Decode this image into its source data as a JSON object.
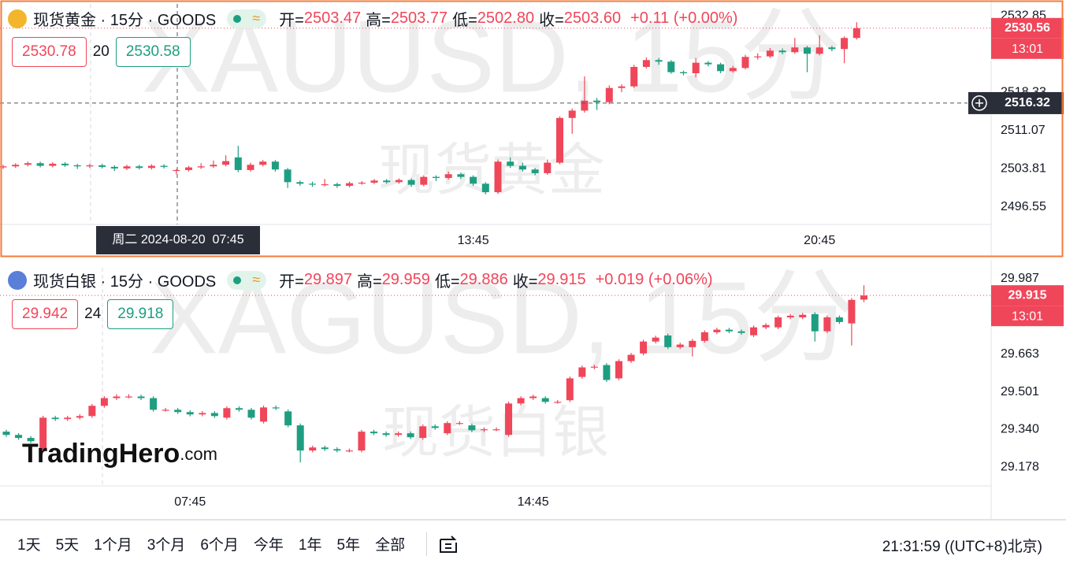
{
  "chart_data": [
    {
      "type": "candlestick",
      "title": "现货黄金 · 15分 · GOODS",
      "status_icon": "≈",
      "header": [
        [
          "开=",
          "2503.47"
        ],
        [
          "高=",
          "2503.77"
        ],
        [
          "低=",
          "2502.80"
        ],
        [
          "收=",
          "2503.60"
        ]
      ],
      "change": "+0.11 (+0.00%)",
      "bid": 2530.78,
      "spread": 20,
      "ask": 2530.58,
      "watermark": "XAUUSD, 15分",
      "watermark_name": "现货黄金",
      "last_price": 2530.56,
      "countdown": "13:01",
      "crosshair_price": 2516.32,
      "crosshair_time": "周二 2024-08-20  07:45",
      "up_color": "#f0465a",
      "down_color": "#1e9e80",
      "ylim": [
        2493.26,
        2535.17
      ],
      "yticks": [
        2496.55,
        2503.81,
        2511.07,
        2518.33,
        2532.85
      ],
      "categories": [
        null,
        null,
        null,
        null,
        null,
        null,
        null,
        null,
        null,
        null,
        null,
        null,
        null,
        null,
        null,
        null,
        null,
        null,
        null,
        null,
        null,
        null,
        null,
        null,
        null,
        null,
        null,
        null,
        null,
        null,
        null,
        null,
        null,
        null,
        null,
        null,
        null,
        null,
        "13:45",
        null,
        null,
        null,
        null,
        null,
        null,
        null,
        null,
        null,
        null,
        null,
        null,
        null,
        null,
        null,
        null,
        null,
        null,
        null,
        null,
        null,
        null,
        null,
        null,
        null,
        null,
        null,
        "20:45",
        null,
        null,
        null
      ],
      "open": [
        2504.1,
        2504.3,
        2504.6,
        2504.9,
        2504.4,
        2504.8,
        2504.5,
        2504.3,
        2504.5,
        2504.2,
        2503.9,
        2504.3,
        2504.0,
        2504.4,
        2503.47,
        2503.6,
        2504.1,
        2504.3,
        2504.6,
        2506.0,
        2503.6,
        2504.6,
        2505.2,
        2503.7,
        2501.3,
        2501.0,
        2500.9,
        2500.9,
        2500.6,
        2501.1,
        2501.2,
        2501.6,
        2501.3,
        2501.7,
        2500.8,
        2502.3,
        2502.1,
        2502.8,
        2502.3,
        2501.0,
        2499.4,
        2505.2,
        2504.4,
        2503.7,
        2503.0,
        2505.0,
        2513.5,
        2514.9,
        2516.8,
        2516.5,
        2519.2,
        2519.5,
        2523.2,
        2524.5,
        2524.2,
        2522.2,
        2522.0,
        2524.0,
        2523.7,
        2522.4,
        2523.0,
        2525.1,
        2525.2,
        2526.3,
        2526.0,
        2526.9,
        2525.7,
        2526.9,
        2526.6,
        2528.7
      ],
      "high": [
        2504.6,
        2504.9,
        2505.2,
        2505.2,
        2505.1,
        2505.1,
        2504.8,
        2504.8,
        2504.8,
        2504.5,
        2504.6,
        2504.6,
        2504.7,
        2504.7,
        2503.77,
        2504.4,
        2504.9,
        2505.4,
        2506.4,
        2508.2,
        2505.0,
        2505.5,
        2505.5,
        2504.0,
        2501.6,
        2501.4,
        2501.9,
        2501.2,
        2501.4,
        2501.5,
        2501.9,
        2501.9,
        2502.0,
        2502.0,
        2502.6,
        2502.6,
        2503.3,
        2503.1,
        2502.6,
        2501.3,
        2505.6,
        2506.0,
        2505.0,
        2504.0,
        2505.6,
        2513.8,
        2515.3,
        2521.4,
        2517.3,
        2519.7,
        2519.9,
        2523.6,
        2525.0,
        2524.9,
        2524.5,
        2522.5,
        2524.9,
        2524.3,
        2524.0,
        2523.4,
        2525.5,
        2525.8,
        2526.8,
        2526.7,
        2528.7,
        2527.2,
        2529.2,
        2527.2,
        2529.0,
        2531.7
      ],
      "low": [
        2503.8,
        2504.0,
        2504.3,
        2504.1,
        2504.1,
        2504.2,
        2503.8,
        2504.0,
        2503.9,
        2503.4,
        2503.6,
        2503.7,
        2503.7,
        2503.9,
        2502.8,
        2503.3,
        2503.8,
        2504.0,
        2504.3,
        2503.2,
        2503.3,
        2504.3,
        2503.3,
        2500.2,
        2500.6,
        2500.4,
        2500.5,
        2500.2,
        2500.3,
        2500.8,
        2500.9,
        2501.0,
        2501.0,
        2500.4,
        2500.5,
        2501.5,
        2501.8,
        2501.9,
        2500.6,
        2499.0,
        2499.1,
        2504.0,
        2503.3,
        2502.6,
        2502.7,
        2504.7,
        2510.5,
        2514.5,
        2515.0,
        2516.1,
        2518.4,
        2519.2,
        2522.9,
        2523.6,
        2521.9,
        2521.6,
        2521.2,
        2523.3,
        2522.0,
        2522.1,
        2522.7,
        2524.6,
        2524.9,
        2525.6,
        2525.7,
        2522.2,
        2525.4,
        2526.2,
        2523.9,
        2528.4
      ],
      "close": [
        2504.3,
        2504.6,
        2504.9,
        2504.4,
        2504.8,
        2504.5,
        2504.3,
        2504.5,
        2504.2,
        2503.9,
        2504.3,
        2504.0,
        2504.4,
        2504.2,
        2503.6,
        2504.1,
        2504.3,
        2504.6,
        2505.3,
        2503.6,
        2504.6,
        2505.2,
        2503.7,
        2501.3,
        2501.0,
        2500.9,
        2500.9,
        2500.6,
        2501.1,
        2501.2,
        2501.6,
        2501.3,
        2501.7,
        2500.8,
        2502.3,
        2502.1,
        2502.8,
        2502.3,
        2501.0,
        2499.4,
        2505.2,
        2504.4,
        2503.7,
        2503.0,
        2505.0,
        2513.5,
        2514.9,
        2516.8,
        2516.5,
        2519.2,
        2519.5,
        2523.2,
        2524.5,
        2524.2,
        2522.2,
        2522.0,
        2524.0,
        2523.7,
        2522.4,
        2523.0,
        2525.1,
        2525.2,
        2526.3,
        2526.0,
        2526.9,
        2525.7,
        2526.9,
        2526.6,
        2528.7,
        2530.56
      ]
    },
    {
      "type": "candlestick",
      "title": "现货白银 · 15分 · GOODS",
      "status_icon": "≈",
      "header": [
        [
          "开=",
          "29.897"
        ],
        [
          "高=",
          "29.959"
        ],
        [
          "低=",
          "29.886"
        ],
        [
          "收=",
          "29.915"
        ]
      ],
      "change": "+0.019 (+0.06%)",
      "bid": 29.942,
      "spread": 24,
      "ask": 29.918,
      "watermark": "XAGUSD, 15分",
      "watermark_name": "现货白银",
      "last_price": 29.915,
      "countdown": "13:01",
      "logo_main": "TradingHero",
      "logo_domain": ".com",
      "up_color": "#f0465a",
      "down_color": "#1e9e80",
      "ylim": [
        29.097,
        30.034
      ],
      "yticks": [
        29.178,
        {
          "value": 29.34,
          "label": "29.340"
        },
        29.501,
        29.663,
        29.987
      ],
      "categories": [
        null,
        null,
        null,
        null,
        null,
        null,
        null,
        null,
        null,
        null,
        null,
        null,
        null,
        null,
        null,
        "07:45",
        null,
        null,
        null,
        null,
        null,
        null,
        null,
        null,
        null,
        null,
        null,
        null,
        null,
        null,
        null,
        null,
        null,
        null,
        null,
        null,
        null,
        null,
        null,
        null,
        null,
        null,
        null,
        "14:45",
        null,
        null,
        null,
        null,
        null,
        null,
        null,
        null,
        null,
        null,
        null,
        null,
        null,
        null,
        null,
        null,
        null,
        null,
        null,
        null,
        null,
        null,
        null,
        null,
        null,
        null,
        null
      ],
      "open": [
        29.33,
        29.316,
        29.303,
        29.255,
        29.39,
        29.384,
        29.39,
        29.397,
        29.441,
        29.474,
        29.481,
        29.481,
        29.474,
        29.424,
        29.424,
        29.414,
        29.404,
        29.41,
        29.39,
        29.431,
        29.424,
        29.373,
        29.434,
        29.417,
        29.357,
        29.249,
        29.262,
        29.255,
        29.249,
        29.249,
        29.33,
        29.323,
        29.316,
        29.323,
        29.303,
        29.353,
        29.323,
        29.367,
        29.357,
        29.336,
        29.34,
        29.316,
        29.451,
        29.474,
        29.474,
        29.458,
        29.465,
        29.565,
        29.606,
        29.616,
        29.559,
        29.633,
        29.666,
        29.717,
        29.743,
        29.693,
        29.693,
        29.72,
        29.757,
        29.768,
        29.761,
        29.744,
        29.778,
        29.778,
        29.821,
        29.821,
        29.835,
        29.761,
        29.821,
        29.795,
        29.897
      ],
      "high": [
        29.338,
        29.324,
        29.311,
        29.398,
        29.398,
        29.398,
        29.405,
        29.449,
        29.482,
        29.491,
        29.491,
        29.489,
        29.482,
        29.432,
        29.432,
        29.422,
        29.418,
        29.418,
        29.439,
        29.439,
        29.432,
        29.442,
        29.442,
        29.425,
        29.365,
        29.27,
        29.27,
        29.263,
        29.257,
        29.338,
        29.338,
        29.331,
        29.331,
        29.331,
        29.361,
        29.361,
        29.375,
        29.375,
        29.365,
        29.348,
        29.348,
        29.459,
        29.482,
        29.489,
        29.482,
        29.466,
        29.567,
        29.614,
        29.617,
        29.624,
        29.641,
        29.668,
        29.725,
        29.742,
        29.751,
        29.712,
        29.728,
        29.765,
        29.776,
        29.776,
        29.769,
        29.786,
        29.796,
        29.829,
        29.836,
        29.84,
        29.843,
        29.829,
        29.829,
        29.904,
        29.959
      ],
      "low": [
        29.308,
        29.295,
        29.281,
        29.247,
        29.376,
        29.376,
        29.382,
        29.389,
        29.433,
        29.466,
        29.473,
        29.466,
        29.416,
        29.416,
        29.406,
        29.396,
        29.396,
        29.389,
        29.382,
        29.416,
        29.382,
        29.365,
        29.423,
        29.349,
        29.198,
        29.241,
        29.247,
        29.241,
        29.241,
        29.241,
        29.315,
        29.308,
        29.308,
        29.298,
        29.295,
        29.338,
        29.315,
        29.359,
        29.328,
        29.328,
        29.332,
        29.308,
        29.443,
        29.466,
        29.45,
        29.45,
        29.457,
        29.557,
        29.598,
        29.544,
        29.551,
        29.625,
        29.658,
        29.709,
        29.685,
        29.685,
        29.653,
        29.712,
        29.749,
        29.753,
        29.746,
        29.736,
        29.77,
        29.77,
        29.813,
        29.813,
        29.717,
        29.753,
        29.793,
        29.7,
        29.886
      ],
      "close": [
        29.316,
        29.303,
        29.289,
        29.39,
        29.384,
        29.39,
        29.397,
        29.441,
        29.474,
        29.481,
        29.481,
        29.474,
        29.424,
        29.424,
        29.414,
        29.404,
        29.41,
        29.397,
        29.431,
        29.424,
        29.39,
        29.434,
        29.431,
        29.357,
        29.249,
        29.262,
        29.255,
        29.249,
        29.249,
        29.33,
        29.323,
        29.316,
        29.323,
        29.306,
        29.353,
        29.346,
        29.367,
        29.367,
        29.336,
        29.34,
        29.34,
        29.451,
        29.474,
        29.481,
        29.458,
        29.458,
        29.559,
        29.606,
        29.609,
        29.552,
        29.633,
        29.66,
        29.717,
        29.734,
        29.693,
        29.704,
        29.72,
        29.757,
        29.768,
        29.761,
        29.754,
        29.778,
        29.788,
        29.821,
        29.828,
        29.832,
        29.761,
        29.821,
        29.801,
        29.896,
        29.915
      ]
    }
  ],
  "toolbar": {
    "ranges": [
      "1天",
      "5天",
      "1个月",
      "3个月",
      "6个月",
      "今年",
      "1年",
      "5年",
      "全部"
    ],
    "clock": "21:31:59 ((UTC+8)北京)"
  }
}
